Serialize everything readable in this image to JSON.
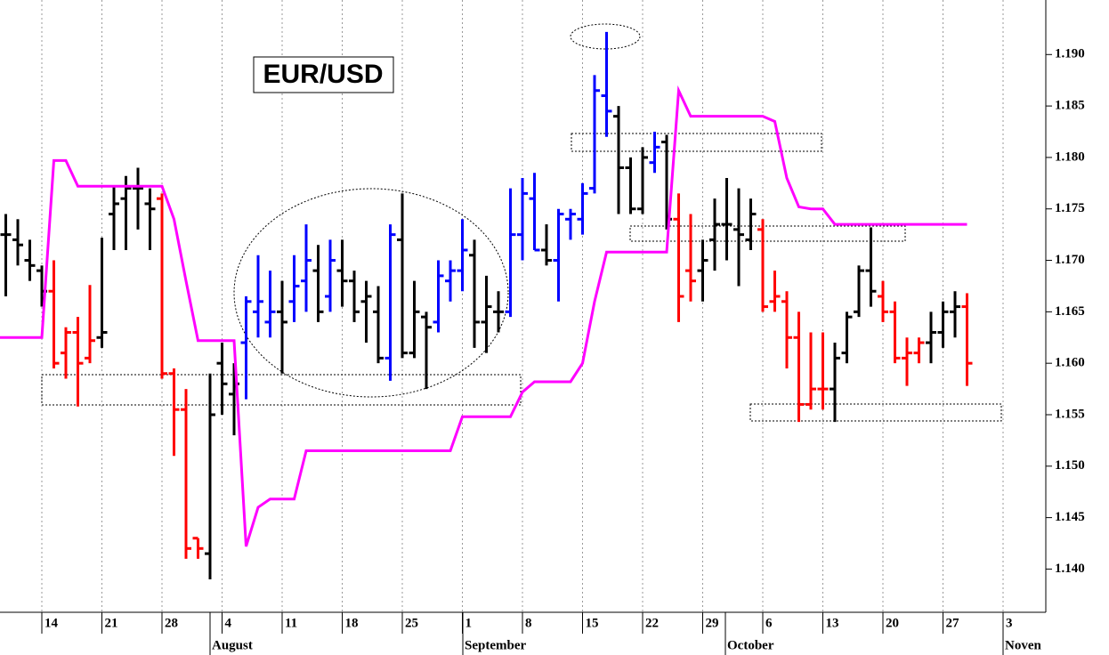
{
  "chart_data": {
    "type": "ohlc",
    "title": "EUR/USD",
    "ohlc": {
      "open": [
        1.1725,
        1.172,
        1.17,
        1.169,
        1.167,
        1.161,
        1.163,
        1.1605,
        1.1625,
        1.1745,
        1.176,
        1.177,
        1.1755,
        1.176,
        1.159,
        1.1555,
        1.143,
        1.1415,
        1.16,
        1.157,
        1.162,
        1.165,
        1.164,
        1.165,
        1.166,
        1.168,
        1.169,
        1.1665,
        1.169,
        1.168,
        1.166,
        1.165,
        1.1605,
        1.172,
        1.161,
        1.1645,
        1.164,
        1.168,
        1.169,
        1.1705,
        1.164,
        1.165,
        1.165,
        1.1725,
        1.176,
        1.171,
        1.17,
        1.174,
        1.174,
        1.177,
        1.186,
        1.184,
        1.179,
        1.175,
        1.1795,
        1.1815,
        1.174,
        1.169,
        1.169,
        1.172,
        1.1735,
        1.173,
        1.172,
        1.173,
        1.166,
        1.166,
        1.1625,
        1.156,
        1.1575,
        1.1575,
        1.161,
        1.165,
        1.169,
        1.1665,
        1.165,
        1.1605,
        1.161,
        1.162,
        1.163,
        1.165,
        1.1655
      ],
      "high": [
        1.1745,
        1.174,
        1.172,
        1.1695,
        1.17,
        1.1635,
        1.1645,
        1.1676,
        1.1722,
        1.1772,
        1.1782,
        1.179,
        1.177,
        1.1765,
        1.1595,
        1.1575,
        1.143,
        1.159,
        1.162,
        1.16,
        1.1665,
        1.1705,
        1.169,
        1.168,
        1.1705,
        1.1735,
        1.1715,
        1.172,
        1.172,
        1.169,
        1.168,
        1.1675,
        1.1735,
        1.1765,
        1.168,
        1.165,
        1.17,
        1.17,
        1.174,
        1.172,
        1.1685,
        1.167,
        1.177,
        1.178,
        1.1785,
        1.1735,
        1.175,
        1.175,
        1.1775,
        1.188,
        1.1922,
        1.185,
        1.18,
        1.181,
        1.1825,
        1.1822,
        1.1765,
        1.1745,
        1.172,
        1.176,
        1.178,
        1.177,
        1.176,
        1.174,
        1.169,
        1.167,
        1.165,
        1.163,
        1.163,
        1.162,
        1.165,
        1.1695,
        1.1732,
        1.168,
        1.166,
        1.1625,
        1.1625,
        1.165,
        1.166,
        1.167,
        1.1668
      ],
      "low": [
        1.1665,
        1.1695,
        1.168,
        1.1655,
        1.1595,
        1.1585,
        1.1558,
        1.16,
        1.1615,
        1.171,
        1.171,
        1.173,
        1.171,
        1.1585,
        1.151,
        1.141,
        1.141,
        1.139,
        1.155,
        1.153,
        1.1565,
        1.1625,
        1.1625,
        1.159,
        1.164,
        1.165,
        1.164,
        1.165,
        1.1655,
        1.164,
        1.162,
        1.16,
        1.1583,
        1.1605,
        1.1605,
        1.1575,
        1.163,
        1.166,
        1.167,
        1.1615,
        1.161,
        1.163,
        1.1645,
        1.17,
        1.171,
        1.1695,
        1.166,
        1.172,
        1.1725,
        1.1765,
        1.182,
        1.1745,
        1.1745,
        1.1745,
        1.1785,
        1.173,
        1.164,
        1.166,
        1.166,
        1.169,
        1.17,
        1.1675,
        1.171,
        1.165,
        1.165,
        1.1595,
        1.1543,
        1.1555,
        1.1555,
        1.1543,
        1.16,
        1.1645,
        1.1655,
        1.164,
        1.16,
        1.1578,
        1.16,
        1.16,
        1.1615,
        1.1625,
        1.1578
      ],
      "close": [
        1.1725,
        1.1715,
        1.1695,
        1.167,
        1.16,
        1.163,
        1.16,
        1.1622,
        1.163,
        1.1755,
        1.177,
        1.177,
        1.175,
        1.159,
        1.1555,
        1.142,
        1.142,
        1.155,
        1.158,
        1.158,
        1.166,
        1.166,
        1.165,
        1.164,
        1.1675,
        1.17,
        1.165,
        1.17,
        1.168,
        1.165,
        1.1665,
        1.1605,
        1.1725,
        1.161,
        1.165,
        1.1635,
        1.1685,
        1.169,
        1.171,
        1.164,
        1.1655,
        1.165,
        1.1725,
        1.1765,
        1.171,
        1.17,
        1.1745,
        1.1745,
        1.1765,
        1.1865,
        1.1845,
        1.179,
        1.175,
        1.18,
        1.181,
        1.174,
        1.1665,
        1.168,
        1.17,
        1.1735,
        1.1735,
        1.1725,
        1.1745,
        1.1655,
        1.1665,
        1.1625,
        1.156,
        1.1575,
        1.1575,
        1.1605,
        1.1645,
        1.169,
        1.167,
        1.165,
        1.1605,
        1.161,
        1.162,
        1.163,
        1.165,
        1.1655,
        1.16
      ],
      "colors": [
        "#000000",
        "#000000",
        "#000000",
        "#000000",
        "#ff0000",
        "#ff0000",
        "#ff0000",
        "#ff0000",
        "#000000",
        "#000000",
        "#000000",
        "#000000",
        "#000000",
        "#ff0000",
        "#ff0000",
        "#ff0000",
        "#ff0000",
        "#000000",
        "#000000",
        "#000000",
        "#0000ff",
        "#0000ff",
        "#0000ff",
        "#000000",
        "#0000ff",
        "#0000ff",
        "#000000",
        "#0000ff",
        "#000000",
        "#000000",
        "#000000",
        "#000000",
        "#0000ff",
        "#000000",
        "#000000",
        "#000000",
        "#0000ff",
        "#0000ff",
        "#0000ff",
        "#000000",
        "#000000",
        "#000000",
        "#0000ff",
        "#0000ff",
        "#0000ff",
        "#000000",
        "#0000ff",
        "#0000ff",
        "#0000ff",
        "#0000ff",
        "#0000ff",
        "#000000",
        "#000000",
        "#000000",
        "#0000ff",
        "#000000",
        "#ff0000",
        "#ff0000",
        "#000000",
        "#000000",
        "#000000",
        "#000000",
        "#000000",
        "#ff0000",
        "#ff0000",
        "#ff0000",
        "#ff0000",
        "#ff0000",
        "#ff0000",
        "#000000",
        "#000000",
        "#000000",
        "#000000",
        "#ff0000",
        "#ff0000",
        "#ff0000",
        "#ff0000",
        "#000000",
        "#000000",
        "#000000",
        "#ff0000"
      ]
    },
    "line": {
      "color": "#ff00ff",
      "values": [
        1.1625,
        1.1625,
        1.1625,
        1.1625,
        1.1797,
        1.1797,
        1.1772,
        1.1772,
        1.1772,
        1.1772,
        1.1772,
        1.1772,
        1.1772,
        1.1772,
        1.174,
        1.168,
        1.1622,
        1.1622,
        1.1622,
        1.1622,
        1.1422,
        1.146,
        1.1468,
        1.1468,
        1.1468,
        1.1515,
        1.1515,
        1.1515,
        1.1515,
        1.1515,
        1.1515,
        1.1515,
        1.1515,
        1.1515,
        1.1515,
        1.1515,
        1.1515,
        1.1515,
        1.1548,
        1.1548,
        1.1548,
        1.1548,
        1.1548,
        1.1572,
        1.1582,
        1.1582,
        1.1582,
        1.1582,
        1.16,
        1.166,
        1.1708,
        1.1708,
        1.1708,
        1.1708,
        1.1708,
        1.1708,
        1.1865,
        1.184,
        1.184,
        1.184,
        1.184,
        1.184,
        1.184,
        1.184,
        1.1835,
        1.178,
        1.1752,
        1.175,
        1.175,
        1.1735,
        1.1735,
        1.1735,
        1.1735,
        1.1735,
        1.1735,
        1.1735,
        1.1735,
        1.1735,
        1.1735,
        1.1735,
        1.1735
      ]
    },
    "ylim": [
      1.1358,
      1.1953
    ],
    "yticks": [
      {
        "value": 1.14,
        "label": "1.140"
      },
      {
        "value": 1.145,
        "label": "1.145"
      },
      {
        "value": 1.15,
        "label": "1.150"
      },
      {
        "value": 1.155,
        "label": "1.155"
      },
      {
        "value": 1.16,
        "label": "1.160"
      },
      {
        "value": 1.165,
        "label": "1.165"
      },
      {
        "value": 1.17,
        "label": "1.170"
      },
      {
        "value": 1.175,
        "label": "1.175"
      },
      {
        "value": 1.18,
        "label": "1.180"
      },
      {
        "value": 1.185,
        "label": "1.185"
      },
      {
        "value": 1.19,
        "label": "1.190"
      }
    ],
    "xtick_labels": [
      "14",
      "21",
      "28",
      "4",
      "11",
      "18",
      "25",
      "1",
      "8",
      "15",
      "22",
      "29",
      "6",
      "13",
      "20",
      "27",
      "3"
    ],
    "month_labels": [
      "August",
      "September",
      "October",
      "Noven"
    ]
  }
}
